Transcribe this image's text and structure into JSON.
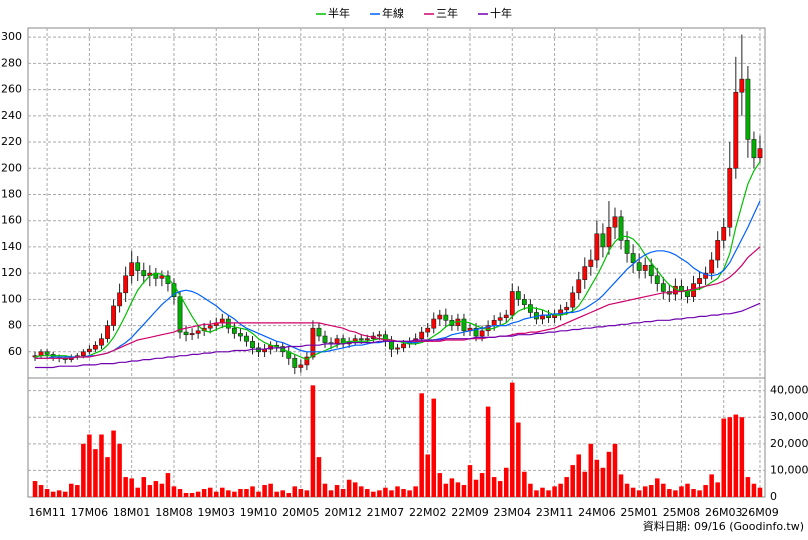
{
  "chart_data": {
    "type": "candlestick",
    "categories": [
      null,
      null,
      "16M11",
      null,
      null,
      null,
      null,
      null,
      null,
      "17M06",
      null,
      null,
      null,
      null,
      null,
      null,
      "18M01",
      null,
      null,
      null,
      null,
      null,
      null,
      "18M08",
      null,
      null,
      null,
      null,
      null,
      null,
      "19M03",
      null,
      null,
      null,
      null,
      null,
      null,
      "19M10",
      null,
      null,
      null,
      null,
      null,
      null,
      "20M05",
      null,
      null,
      null,
      null,
      null,
      null,
      "20M12",
      null,
      null,
      null,
      null,
      null,
      null,
      "21M07",
      null,
      null,
      null,
      null,
      null,
      null,
      "22M02",
      null,
      null,
      null,
      null,
      null,
      null,
      "22M09",
      null,
      null,
      null,
      null,
      null,
      null,
      "23M04",
      null,
      null,
      null,
      null,
      null,
      null,
      "23M11",
      null,
      null,
      null,
      null,
      null,
      null,
      "24M06",
      null,
      null,
      null,
      null,
      null,
      null,
      "25M01",
      null,
      null,
      null,
      null,
      null,
      null,
      "25M08",
      null,
      null,
      null,
      null,
      null,
      null,
      "26M03",
      null,
      null,
      null,
      null,
      null,
      "26M09"
    ],
    "open": [
      56,
      57,
      60,
      58,
      56,
      55,
      54,
      56,
      57,
      60,
      62,
      65,
      70,
      80,
      95,
      105,
      118,
      128,
      122,
      118,
      120,
      116,
      118,
      112,
      102,
      75,
      73,
      74,
      76,
      78,
      80,
      82,
      85,
      78,
      74,
      72,
      68,
      63,
      60,
      62,
      65,
      64,
      60,
      55,
      48,
      50,
      56,
      78,
      72,
      67,
      66,
      70,
      66,
      68,
      70,
      69,
      70,
      72,
      73,
      68,
      62,
      63,
      66,
      68,
      70,
      75,
      78,
      85,
      88,
      84,
      80,
      85,
      76,
      78,
      72,
      76,
      80,
      84,
      86,
      88,
      106,
      100,
      96,
      90,
      85,
      88,
      86,
      88,
      92,
      94,
      105,
      115,
      125,
      130,
      150,
      140,
      155,
      163,
      145,
      135,
      128,
      122,
      126,
      118,
      112,
      106,
      104,
      110,
      106,
      102,
      112,
      116,
      120,
      130,
      145,
      155,
      200,
      258,
      268,
      222,
      208
    ],
    "high": [
      60,
      62,
      62,
      60,
      58,
      57,
      58,
      59,
      62,
      65,
      68,
      74,
      84,
      100,
      112,
      125,
      137,
      133,
      128,
      126,
      124,
      122,
      122,
      116,
      106,
      80,
      78,
      80,
      82,
      84,
      86,
      89,
      88,
      82,
      78,
      75,
      72,
      67,
      66,
      68,
      68,
      67,
      64,
      58,
      54,
      60,
      84,
      82,
      76,
      71,
      73,
      73,
      71,
      73,
      73,
      73,
      75,
      76,
      76,
      72,
      66,
      69,
      71,
      74,
      79,
      82,
      90,
      92,
      93,
      88,
      89,
      89,
      82,
      82,
      80,
      84,
      88,
      90,
      92,
      112,
      110,
      104,
      100,
      94,
      92,
      92,
      92,
      96,
      98,
      110,
      121,
      132,
      138,
      160,
      158,
      175,
      170,
      168,
      152,
      142,
      135,
      132,
      131,
      124,
      117,
      111,
      116,
      115,
      110,
      118,
      121,
      125,
      136,
      152,
      162,
      220,
      285,
      302,
      278,
      228,
      225
    ],
    "low": [
      53,
      55,
      55,
      53,
      52,
      51,
      52,
      54,
      55,
      58,
      60,
      62,
      67,
      76,
      90,
      98,
      112,
      114,
      112,
      110,
      110,
      110,
      106,
      96,
      70,
      68,
      69,
      70,
      72,
      74,
      76,
      78,
      74,
      70,
      68,
      64,
      58,
      56,
      56,
      58,
      60,
      56,
      50,
      43,
      44,
      46,
      54,
      68,
      63,
      62,
      63,
      63,
      63,
      65,
      66,
      66,
      67,
      69,
      64,
      56,
      58,
      60,
      63,
      65,
      67,
      71,
      74,
      80,
      79,
      76,
      76,
      72,
      72,
      68,
      68,
      72,
      76,
      80,
      82,
      85,
      95,
      92,
      86,
      81,
      81,
      82,
      82,
      84,
      88,
      90,
      100,
      108,
      118,
      124,
      132,
      134,
      146,
      138,
      128,
      120,
      116,
      116,
      112,
      106,
      100,
      98,
      99,
      100,
      97,
      98,
      107,
      111,
      115,
      124,
      139,
      148,
      192,
      240,
      208,
      200,
      204
    ],
    "close": [
      57,
      60,
      58,
      56,
      55,
      54,
      56,
      57,
      60,
      62,
      65,
      70,
      80,
      95,
      105,
      118,
      128,
      122,
      118,
      120,
      116,
      118,
      112,
      102,
      75,
      73,
      74,
      76,
      78,
      80,
      82,
      85,
      78,
      74,
      72,
      68,
      63,
      60,
      62,
      65,
      64,
      60,
      55,
      48,
      50,
      56,
      78,
      72,
      67,
      66,
      70,
      66,
      68,
      70,
      69,
      70,
      72,
      73,
      68,
      62,
      63,
      66,
      68,
      70,
      75,
      78,
      85,
      88,
      84,
      80,
      85,
      76,
      78,
      72,
      76,
      80,
      84,
      86,
      88,
      106,
      100,
      96,
      90,
      85,
      88,
      86,
      88,
      92,
      94,
      105,
      115,
      125,
      130,
      150,
      140,
      155,
      163,
      145,
      135,
      128,
      122,
      126,
      118,
      112,
      106,
      104,
      110,
      106,
      102,
      112,
      116,
      120,
      130,
      145,
      155,
      200,
      258,
      268,
      222,
      208,
      215
    ],
    "up_color": "#ff0000",
    "down_color": "#00b000",
    "series": [
      {
        "name": "半年",
        "color": "#00c000",
        "values": [
          56,
          57,
          57,
          57,
          57,
          57,
          56,
          56,
          56,
          57,
          59,
          61,
          65,
          71,
          79,
          88,
          98,
          107,
          113,
          118,
          120,
          119,
          116,
          111,
          103,
          95,
          87,
          80,
          76,
          75,
          77,
          79,
          80,
          79,
          78,
          77,
          74,
          70,
          67,
          65,
          64,
          62,
          60,
          58,
          56,
          54,
          57,
          59,
          61,
          63,
          65,
          67,
          68,
          68,
          68,
          68,
          69,
          70,
          70,
          69,
          68,
          67,
          66,
          66,
          67,
          69,
          72,
          75,
          79,
          82,
          83,
          83,
          82,
          80,
          78,
          77,
          78,
          80,
          82,
          87,
          91,
          93,
          94,
          93,
          92,
          90,
          88,
          88,
          89,
          91,
          95,
          102,
          110,
          118,
          127,
          137,
          144,
          148,
          148,
          146,
          141,
          134,
          128,
          122,
          116,
          111,
          108,
          106,
          106,
          107,
          108,
          110,
          113,
          116,
          123,
          135,
          155,
          172,
          188,
          198,
          205
        ]
      },
      {
        "name": "年線",
        "color": "#0060ff",
        "values": [
          55,
          55,
          55,
          56,
          56,
          56,
          56,
          56,
          56,
          57,
          57,
          58,
          59,
          61,
          64,
          67,
          71,
          76,
          81,
          86,
          91,
          96,
          100,
          104,
          106,
          107,
          106,
          104,
          101,
          98,
          95,
          91,
          88,
          85,
          81,
          78,
          76,
          74,
          72,
          70,
          68,
          67,
          65,
          63,
          61,
          60,
          60,
          60,
          60,
          61,
          62,
          63,
          64,
          65,
          65,
          66,
          67,
          67,
          68,
          68,
          68,
          68,
          67,
          67,
          68,
          68,
          69,
          70,
          71,
          73,
          74,
          75,
          76,
          77,
          78,
          79,
          80,
          80,
          80,
          82,
          83,
          85,
          86,
          87,
          88,
          88,
          89,
          89,
          90,
          90,
          91,
          93,
          96,
          99,
          103,
          108,
          113,
          118,
          123,
          127,
          131,
          134,
          136,
          137,
          137,
          136,
          134,
          131,
          128,
          124,
          121,
          119,
          118,
          119,
          122,
          128,
          137,
          146,
          155,
          165,
          175
        ]
      },
      {
        "name": "三年",
        "color": "#d0006a",
        "values": [
          55,
          55,
          55,
          55,
          55,
          55,
          55,
          56,
          56,
          56,
          57,
          58,
          59,
          61,
          63,
          65,
          67,
          69,
          70,
          71,
          72,
          73,
          74,
          75,
          77,
          78,
          79,
          80,
          81,
          81,
          82,
          82,
          82,
          82,
          82,
          82,
          82,
          82,
          82,
          82,
          82,
          82,
          82,
          82,
          82,
          82,
          82,
          82,
          81,
          80,
          79,
          78,
          76,
          75,
          73,
          72,
          71,
          70,
          69,
          69,
          68,
          68,
          68,
          68,
          68,
          68,
          68,
          68,
          69,
          69,
          69,
          69,
          70,
          70,
          70,
          71,
          71,
          72,
          72,
          73,
          74,
          74,
          75,
          75,
          76,
          77,
          78,
          80,
          82,
          84,
          86,
          88,
          90,
          92,
          94,
          96,
          97,
          98,
          99,
          100,
          101,
          102,
          103,
          104,
          105,
          105,
          106,
          106,
          107,
          108,
          109,
          110,
          111,
          112,
          114,
          117,
          121,
          126,
          132,
          136,
          140
        ]
      },
      {
        "name": "十年",
        "color": "#7000b0",
        "values": [
          48,
          48,
          48,
          48,
          49,
          49,
          49,
          49,
          50,
          50,
          50,
          51,
          51,
          51,
          52,
          52,
          53,
          53,
          54,
          54,
          55,
          55,
          56,
          56,
          57,
          57,
          58,
          58,
          59,
          59,
          60,
          60,
          60,
          61,
          61,
          61,
          62,
          62,
          62,
          63,
          63,
          63,
          64,
          64,
          64,
          65,
          65,
          65,
          66,
          66,
          66,
          66,
          67,
          67,
          67,
          67,
          67,
          68,
          68,
          68,
          68,
          68,
          68,
          69,
          69,
          69,
          69,
          69,
          70,
          70,
          70,
          70,
          70,
          71,
          71,
          71,
          71,
          72,
          72,
          72,
          73,
          73,
          73,
          74,
          74,
          75,
          75,
          76,
          76,
          77,
          77,
          78,
          78,
          79,
          79,
          80,
          80,
          81,
          81,
          82,
          82,
          83,
          83,
          84,
          84,
          84,
          85,
          85,
          86,
          86,
          87,
          87,
          88,
          88,
          89,
          89,
          90,
          91,
          93,
          95,
          97
        ]
      }
    ],
    "ylim": [
      40,
      307
    ],
    "yticks": [
      60,
      80,
      100,
      120,
      140,
      160,
      180,
      200,
      220,
      240,
      260,
      280,
      300
    ],
    "grid": true,
    "volume": {
      "type": "bar",
      "color": "#ff0000",
      "values": [
        6000,
        4500,
        3000,
        2000,
        2500,
        2000,
        5000,
        4500,
        20000,
        23500,
        18000,
        23500,
        15000,
        25000,
        20000,
        7500,
        7000,
        3500,
        7500,
        4500,
        6000,
        5000,
        9000,
        4000,
        3000,
        1500,
        1500,
        2000,
        3000,
        3500,
        2000,
        3500,
        2500,
        2000,
        3000,
        3000,
        4000,
        2000,
        4500,
        5000,
        2000,
        2500,
        1500,
        4000,
        3000,
        2500,
        42000,
        15000,
        5000,
        2500,
        4500,
        3000,
        6500,
        5500,
        4000,
        3000,
        2000,
        2500,
        3500,
        2500,
        4000,
        3000,
        2500,
        4000,
        39000,
        16000,
        37000,
        9000,
        5000,
        7000,
        5500,
        4500,
        12000,
        6500,
        9000,
        34000,
        7500,
        6000,
        11000,
        43000,
        28000,
        9500,
        5000,
        2500,
        3500,
        2500,
        4000,
        5000,
        7500,
        12000,
        16000,
        9500,
        20000,
        14000,
        11000,
        17000,
        20000,
        8500,
        5000,
        3500,
        2500,
        4000,
        4500,
        7000,
        5000,
        3000,
        2500,
        4000,
        5000,
        3000,
        2500,
        4500,
        8500,
        5500,
        29500,
        30000,
        31000,
        30000,
        7500,
        5000,
        3500
      ],
      "ylim": [
        0,
        44000
      ],
      "yticks": [
        0,
        {
          "value": 10000,
          "label": "10,000"
        },
        {
          "value": 20000,
          "label": "20,000"
        },
        {
          "value": 30000,
          "label": "30,000"
        },
        {
          "value": 40000,
          "label": "40,000"
        }
      ]
    },
    "note": "資料日期: 09/16 (Goodinfo.tw)"
  }
}
